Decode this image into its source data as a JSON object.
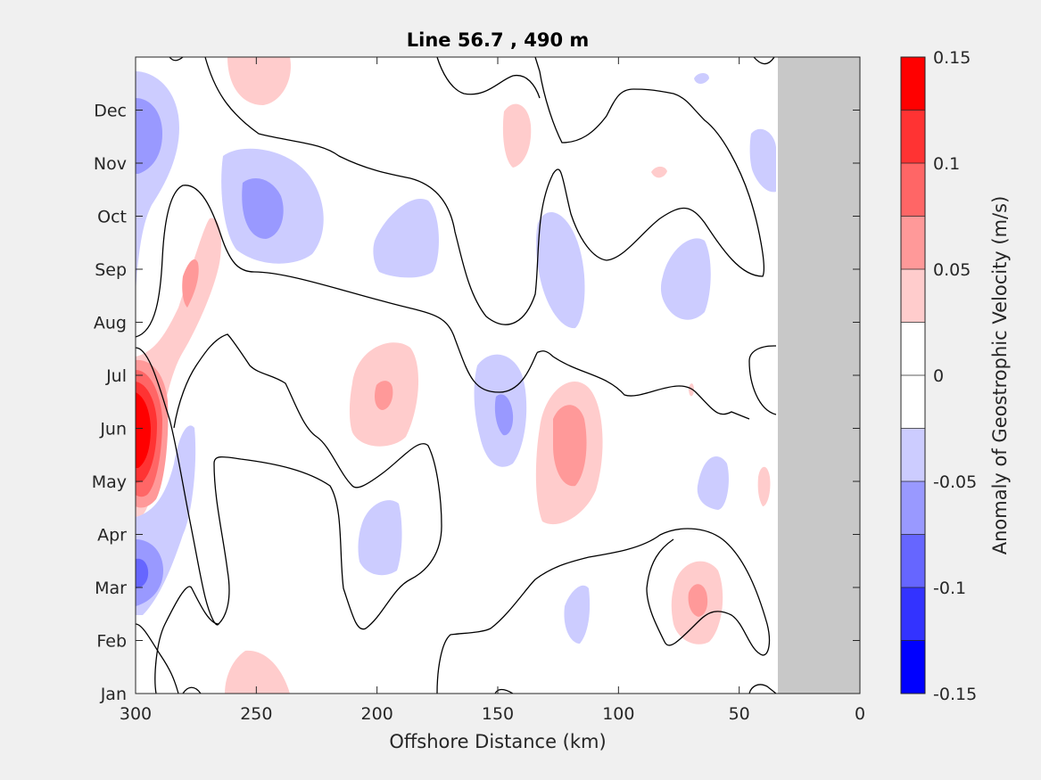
{
  "chart_data": {
    "type": "contourf",
    "title": "Line 56.7 , 490 m",
    "xlabel": "Offshore Distance (km)",
    "xlim": [
      300,
      0
    ],
    "x_ticks": [
      300,
      250,
      200,
      150,
      100,
      50,
      0
    ],
    "x_tick_labels": [
      "300",
      "250",
      "200",
      "150",
      "100",
      "50",
      "0"
    ],
    "y_tick_labels": [
      "Jan",
      "Feb",
      "Mar",
      "Apr",
      "May",
      "Jun",
      "Jul",
      "Aug",
      "Sep",
      "Oct",
      "Nov",
      "Dec"
    ],
    "colorbar": {
      "label": "Anomaly of Geostrophic Velocity (m/s)",
      "range": [
        -0.15,
        0.15
      ],
      "ticks": [
        0.15,
        0.1,
        0.05,
        0,
        -0.05,
        -0.1,
        -0.15
      ],
      "tick_labels": [
        "0.15",
        "0.1",
        "0.05",
        "0",
        "-0.05",
        "-0.1",
        "-0.15"
      ],
      "colors_top_to_bottom": [
        "#ff0000",
        "#ff3333",
        "#ff6666",
        "#ff9999",
        "#ffcccc",
        "#ffffff",
        "#ffffff",
        "#ccccff",
        "#9999ff",
        "#6666ff",
        "#3333ff",
        "#0000ff"
      ]
    },
    "land_mask": {
      "from_km": 34,
      "to_km": 0,
      "color": "#c8c8c8"
    },
    "zero_contour_color": "#000000"
  }
}
